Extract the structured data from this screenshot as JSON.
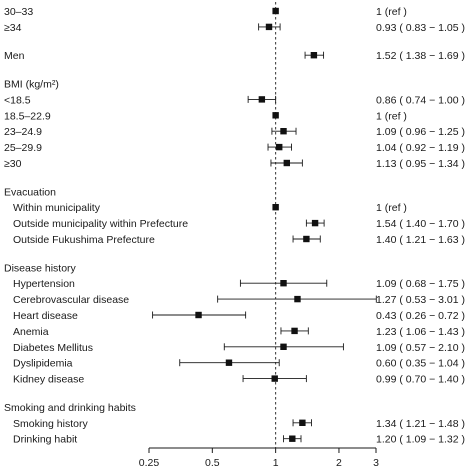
{
  "chart_data": {
    "type": "forest",
    "title": "",
    "xlabel": "",
    "ylabel": "",
    "x_scale": "log",
    "xlim": [
      0.25,
      3
    ],
    "x_ticks": [
      0.25,
      0.5,
      1,
      2,
      3
    ],
    "x_tick_labels": [
      "0.25",
      "0.5",
      "1",
      "2",
      "3"
    ],
    "reference_line": 1,
    "rows": [
      {
        "kind": "item",
        "label": "30–33",
        "indent": false,
        "or": 1,
        "ci": null,
        "text": "1 (ref )"
      },
      {
        "kind": "item",
        "label": "≥34",
        "indent": false,
        "or": 0.93,
        "ci": [
          0.83,
          1.05
        ],
        "text": "0.93 ( 0.83 − 1.05 )"
      },
      {
        "kind": "gap"
      },
      {
        "kind": "item",
        "label": "Men",
        "indent": false,
        "or": 1.52,
        "ci": [
          1.38,
          1.69
        ],
        "text": "1.52 ( 1.38 − 1.69 )"
      },
      {
        "kind": "gap"
      },
      {
        "kind": "header",
        "label": "BMI (kg/m²)"
      },
      {
        "kind": "item",
        "label": "<18.5",
        "indent": false,
        "or": 0.86,
        "ci": [
          0.74,
          1.0
        ],
        "text": "0.86 ( 0.74 − 1.00 )"
      },
      {
        "kind": "item",
        "label": "18.5–22.9",
        "indent": false,
        "or": 1,
        "ci": null,
        "text": "1 (ref )"
      },
      {
        "kind": "item",
        "label": "23–24.9",
        "indent": false,
        "or": 1.09,
        "ci": [
          0.96,
          1.25
        ],
        "text": "1.09 ( 0.96 − 1.25 )"
      },
      {
        "kind": "item",
        "label": "25–29.9",
        "indent": false,
        "or": 1.04,
        "ci": [
          0.92,
          1.19
        ],
        "text": "1.04 ( 0.92 − 1.19 )"
      },
      {
        "kind": "item",
        "label": "≥30",
        "indent": false,
        "or": 1.13,
        "ci": [
          0.95,
          1.34
        ],
        "text": "1.13 ( 0.95 − 1.34 )"
      },
      {
        "kind": "gap"
      },
      {
        "kind": "header",
        "label": "Evacuation"
      },
      {
        "kind": "item",
        "label": "Within municipality",
        "indent": true,
        "or": 1,
        "ci": null,
        "text": "1 (ref )"
      },
      {
        "kind": "item",
        "label": "Outside municipality within Prefecture",
        "indent": true,
        "or": 1.54,
        "ci": [
          1.4,
          1.7
        ],
        "text": "1.54 ( 1.40 − 1.70 )"
      },
      {
        "kind": "item",
        "label": "Outside Fukushima Prefecture",
        "indent": true,
        "or": 1.4,
        "ci": [
          1.21,
          1.63
        ],
        "text": "1.40 ( 1.21 − 1.63 )"
      },
      {
        "kind": "gap"
      },
      {
        "kind": "header",
        "label": "Disease history"
      },
      {
        "kind": "item",
        "label": "Hypertension",
        "indent": true,
        "or": 1.09,
        "ci": [
          0.68,
          1.75
        ],
        "text": "1.09 ( 0.68 − 1.75 )"
      },
      {
        "kind": "item",
        "label": "Cerebrovascular disease",
        "indent": true,
        "or": 1.27,
        "ci": [
          0.53,
          3.01
        ],
        "text": "1.27 ( 0.53 − 3.01 )"
      },
      {
        "kind": "item",
        "label": "Heart disease",
        "indent": true,
        "or": 0.43,
        "ci": [
          0.26,
          0.72
        ],
        "text": "0.43 ( 0.26 − 0.72 )"
      },
      {
        "kind": "item",
        "label": "Anemia",
        "indent": true,
        "or": 1.23,
        "ci": [
          1.06,
          1.43
        ],
        "text": "1.23 ( 1.06 − 1.43 )"
      },
      {
        "kind": "item",
        "label": "Diabetes Mellitus",
        "indent": true,
        "or": 1.09,
        "ci": [
          0.57,
          2.1
        ],
        "text": "1.09 ( 0.57 − 2.10 )"
      },
      {
        "kind": "item",
        "label": "Dyslipidemia",
        "indent": true,
        "or": 0.6,
        "ci": [
          0.35,
          1.04
        ],
        "text": "0.60 ( 0.35 − 1.04 )"
      },
      {
        "kind": "item",
        "label": "Kidney disease",
        "indent": true,
        "or": 0.99,
        "ci": [
          0.7,
          1.4
        ],
        "text": "0.99 ( 0.70 − 1.40 )"
      },
      {
        "kind": "gap"
      },
      {
        "kind": "header",
        "label": "Smoking and drinking habits"
      },
      {
        "kind": "item",
        "label": "Smoking history",
        "indent": true,
        "or": 1.34,
        "ci": [
          1.21,
          1.48
        ],
        "text": "1.34 ( 1.21 − 1.48 )"
      },
      {
        "kind": "item",
        "label": "Drinking habit",
        "indent": true,
        "or": 1.2,
        "ci": [
          1.09,
          1.32
        ],
        "text": "1.20 ( 1.09 − 1.32 )"
      }
    ]
  }
}
